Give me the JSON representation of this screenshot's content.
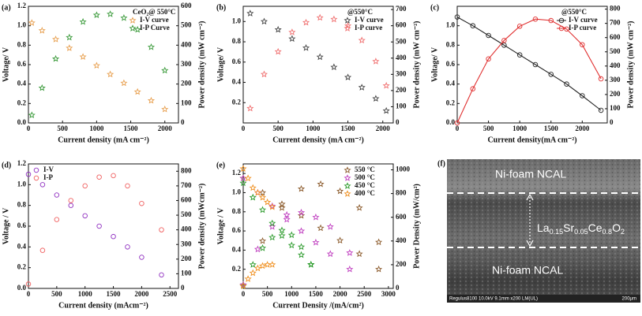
{
  "chart_data": [
    {
      "type": "scatter",
      "panel_label": "(a)",
      "x_label": "Current density (mA cm⁻²)",
      "y_label": "Voltage/ V",
      "y2_label": "Power density (mW cm⁻²)",
      "legend_title": "CeO₂@ 550°C",
      "legend": "upper right",
      "xlim": [
        0,
        2200
      ],
      "xticks": [
        0,
        500,
        1000,
        1500,
        2000
      ],
      "ylim": [
        0,
        1.2
      ],
      "yticks": [
        {
          "value": 0,
          "label": "0.0"
        },
        0.2,
        0.4,
        0.6,
        0.8,
        {
          "value": 1,
          "label": "1.0"
        },
        1.2
      ],
      "y2lim": [
        0,
        600
      ],
      "y2ticks": [
        0,
        100,
        200,
        300,
        400,
        500,
        600
      ],
      "x": [
        50,
        200,
        400,
        600,
        800,
        1000,
        1200,
        1400,
        1600,
        1800,
        2000
      ],
      "series": [
        {
          "name": "I-V curve",
          "color": "#e8a050",
          "marker": "star",
          "values": [
            1.03,
            0.95,
            0.86,
            0.77,
            0.68,
            0.59,
            0.5,
            0.41,
            0.32,
            0.23,
            0.14
          ]
        },
        {
          "name": "I-P Curve",
          "color": "#3a9a3a",
          "marker": "star",
          "axis": "y2",
          "values": [
            40,
            180,
            330,
            440,
            520,
            555,
            560,
            540,
            480,
            390,
            270
          ]
        }
      ]
    },
    {
      "type": "scatter",
      "panel_label": "(b)",
      "x_label": "Current density (mA cm⁻²)",
      "y_label": "Voltage/ V",
      "y2_label": "Power density (mW cm⁻²)",
      "legend_title": "@550°C",
      "legend": "upper right",
      "xlim": [
        0,
        2150
      ],
      "xticks": [
        0,
        500,
        1000,
        1500,
        2000
      ],
      "ylim": [
        0,
        1.15
      ],
      "yticks": [
        0.2,
        0.4,
        0.6,
        0.8,
        {
          "value": 1,
          "label": "1.0"
        }
      ],
      "y2lim": [
        0,
        720
      ],
      "y2ticks": [
        0,
        100,
        200,
        300,
        400,
        500,
        600,
        700
      ],
      "x": [
        100,
        300,
        500,
        700,
        900,
        1100,
        1300,
        1500,
        1700,
        1900,
        2050
      ],
      "series": [
        {
          "name": "I-V curve",
          "color": "#444444",
          "marker": "star",
          "values": [
            1.08,
            1.0,
            0.92,
            0.83,
            0.74,
            0.65,
            0.55,
            0.45,
            0.35,
            0.24,
            0.12
          ]
        },
        {
          "name": "I-P curve",
          "color": "#f07070",
          "marker": "star",
          "axis": "y2",
          "values": [
            90,
            300,
            440,
            560,
            620,
            650,
            640,
            600,
            510,
            380,
            230
          ]
        }
      ]
    },
    {
      "type": "line",
      "panel_label": "(c)",
      "x_label": "Current density(mA cm⁻²)",
      "y_label": "Voltage/ V",
      "y2_label": "Power density (mW cm⁻²)",
      "legend_title": "@550°C",
      "legend": "upper right",
      "xlim": [
        0,
        2400
      ],
      "xticks": [
        0,
        500,
        1000,
        1500,
        2000
      ],
      "ylim": [
        0,
        1.2
      ],
      "yticks": [
        {
          "value": 0,
          "label": "0.0"
        },
        0.2,
        0.4,
        0.6,
        0.8,
        {
          "value": 1,
          "label": "1.0"
        }
      ],
      "y2lim": [
        0,
        820
      ],
      "y2ticks": [
        0,
        100,
        200,
        300,
        400,
        500,
        600,
        700,
        800
      ],
      "x": [
        0,
        250,
        500,
        750,
        1000,
        1250,
        1500,
        1750,
        2000,
        2300
      ],
      "series": [
        {
          "name": "I-V curve",
          "color": "#222222",
          "marker": "circle",
          "values": [
            1.09,
            1.0,
            0.9,
            0.8,
            0.7,
            0.6,
            0.5,
            0.4,
            0.28,
            0.13
          ]
        },
        {
          "name": "I-P curve",
          "color": "#e03030",
          "marker": "circle",
          "axis": "y2",
          "values": [
            0,
            240,
            450,
            580,
            680,
            730,
            720,
            660,
            550,
            310
          ]
        }
      ]
    },
    {
      "type": "scatter",
      "panel_label": "(d)",
      "x_label": "Current density (mAcm⁻²)",
      "y_label": "Voltage / V",
      "y2_label": "Power density (mWcm⁻²)",
      "legend": "upper left",
      "xlim": [
        0,
        2650
      ],
      "xticks": [
        0,
        500,
        1000,
        1500,
        2000,
        2500
      ],
      "ylim": [
        0,
        1.2
      ],
      "yticks": [
        {
          "value": 0,
          "label": "0.0"
        },
        0.2,
        0.4,
        0.6,
        0.8,
        {
          "value": 1,
          "label": "1.0"
        },
        1.2
      ],
      "y2lim": [
        0,
        850
      ],
      "y2ticks": [
        0,
        100,
        200,
        300,
        400,
        500,
        600,
        700,
        800
      ],
      "x": [
        0,
        250,
        500,
        750,
        1000,
        1250,
        1500,
        1750,
        2000,
        2350
      ],
      "series": [
        {
          "name": "I-V",
          "color": "#9030c0",
          "marker": "circle",
          "values": [
            1.1,
            1.0,
            0.9,
            0.8,
            0.7,
            0.6,
            0.5,
            0.4,
            0.3,
            0.13
          ]
        },
        {
          "name": "I-P",
          "color": "#f06060",
          "marker": "circle",
          "axis": "y2",
          "values": [
            30,
            260,
            470,
            600,
            700,
            760,
            770,
            700,
            580,
            400
          ]
        }
      ]
    },
    {
      "type": "scatter",
      "panel_label": "(e)",
      "x_label": "Current Density /(mA/cm²)",
      "y_label": "Voltage / V",
      "y2_label": "Power Density (mW/cm²)",
      "legend": "upper right",
      "xlim": [
        0,
        3100
      ],
      "xticks": [
        0,
        500,
        1000,
        1500,
        2000,
        2500,
        3000
      ],
      "ylim": [
        0,
        1.3
      ],
      "yticks": [
        0.2,
        0.4,
        0.6,
        0.8,
        {
          "value": 1,
          "label": "1.0"
        },
        1.2
      ],
      "y2lim": [
        0,
        1050
      ],
      "y2ticks": [
        0,
        200,
        400,
        600,
        800,
        1000
      ],
      "series": [
        {
          "name": "550 °C",
          "color": "#8b5a2b",
          "marker": "star",
          "x": [
            0,
            400,
            800,
            1200,
            1600,
            2000,
            2400,
            2800
          ],
          "values": [
            1.15,
            1.0,
            0.88,
            0.76,
            0.63,
            0.5,
            0.36,
            0.2
          ]
        },
        {
          "color": "#8b5a2b",
          "marker": "star",
          "axis": "y2",
          "x": [
            0,
            400,
            800,
            1200,
            1600,
            2000,
            2400,
            2800
          ],
          "values": [
            30,
            400,
            680,
            840,
            880,
            820,
            680,
            390
          ]
        },
        {
          "name": "500 °C",
          "color": "#c040c0",
          "marker": "star",
          "x": [
            0,
            300,
            600,
            900,
            1200,
            1500,
            1800,
            2200
          ],
          "values": [
            1.15,
            1.0,
            0.86,
            0.72,
            0.6,
            0.48,
            0.36,
            0.2
          ]
        },
        {
          "color": "#c040c0",
          "marker": "star",
          "axis": "y2",
          "x": [
            0,
            300,
            600,
            900,
            1200,
            1500,
            1800,
            2200
          ],
          "values": [
            30,
            330,
            520,
            620,
            640,
            600,
            520,
            300
          ]
        },
        {
          "name": "450 °C",
          "color": "#2a9a2a",
          "marker": "star",
          "x": [
            0,
            200,
            400,
            600,
            800,
            1000,
            1200,
            1400
          ],
          "values": [
            1.1,
            0.95,
            0.82,
            0.68,
            0.55,
            0.45,
            0.35,
            0.25
          ]
        },
        {
          "color": "#2a9a2a",
          "marker": "star",
          "axis": "y2",
          "x": [
            0,
            200,
            400,
            600,
            800,
            1000,
            1200,
            1400
          ],
          "values": [
            20,
            200,
            340,
            430,
            490,
            450,
            350,
            200
          ]
        },
        {
          "name": "400 °C",
          "color": "#f09020",
          "marker": "star",
          "x": [
            0,
            100,
            200,
            300,
            400,
            500,
            600
          ],
          "values": [
            1.25,
            1.15,
            1.05,
            1.0,
            0.95,
            0.9,
            0.85
          ]
        },
        {
          "color": "#f09020",
          "marker": "star",
          "axis": "y2",
          "x": [
            0,
            100,
            200,
            300,
            400,
            500,
            600
          ],
          "values": [
            20,
            80,
            130,
            170,
            190,
            200,
            200
          ]
        }
      ]
    }
  ],
  "image_panel": {
    "label": "(f)",
    "top_layer": "Ni-foam NCAL",
    "formula": [
      "La",
      "0.15",
      "Sr",
      "0.05",
      "Ce",
      "0.8",
      "O",
      "2"
    ],
    "bottom_layer": "Ni-foam NCAL",
    "info_bar": "Regulus8100 10.0kV 9.1mm x200 LM(UL)",
    "scale": "200μm"
  }
}
